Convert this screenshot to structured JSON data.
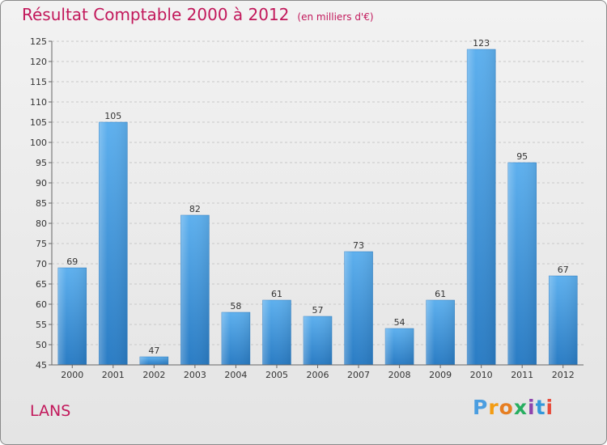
{
  "header": {
    "title": "Résultat Comptable 2000 à 2012",
    "subtitle": "(en milliers d'€)"
  },
  "footer": {
    "place": "LANS",
    "logo_letters": [
      "P",
      "r",
      "o",
      "x",
      "i",
      "t",
      "i"
    ],
    "logo_colors": [
      "#4a9de0",
      "#f39c12",
      "#e67e22",
      "#27ae60",
      "#8e44ad",
      "#3498db",
      "#e74c3c"
    ]
  },
  "colors": {
    "bar": "#3a8fd8",
    "bar_light": "#5eb0ee",
    "title": "#c2185b"
  },
  "chart_data": {
    "type": "bar",
    "title": "Résultat Comptable 2000 à 2012",
    "subtitle": "(en milliers d'€)",
    "categories": [
      "2000",
      "2001",
      "2002",
      "2003",
      "2004",
      "2005",
      "2006",
      "2007",
      "2008",
      "2009",
      "2010",
      "2011",
      "2012"
    ],
    "values": [
      69,
      105,
      47,
      82,
      58,
      61,
      57,
      73,
      54,
      61,
      123,
      95,
      67
    ],
    "xlabel": "",
    "ylabel": "",
    "ylim": [
      45,
      125
    ],
    "yticks": [
      45,
      50,
      55,
      60,
      65,
      70,
      75,
      80,
      85,
      90,
      95,
      100,
      105,
      110,
      115,
      120,
      125
    ],
    "grid": true,
    "legend": "none"
  }
}
